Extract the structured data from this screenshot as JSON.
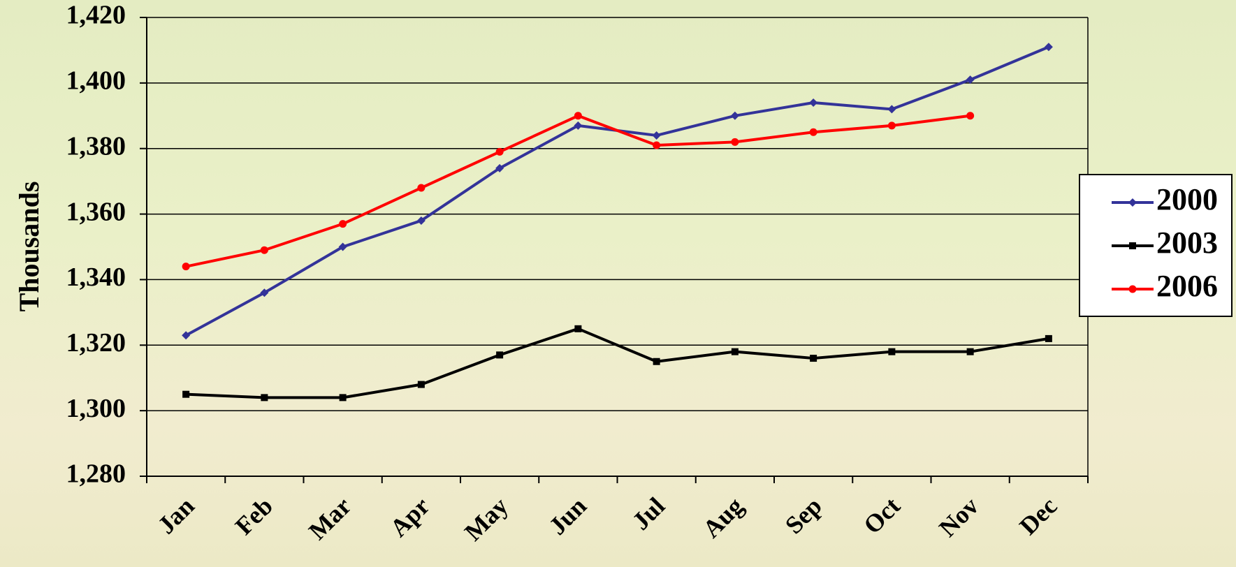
{
  "chart_data": {
    "type": "line",
    "ylabel": "Thousands",
    "categories": [
      "Jan",
      "Feb",
      "Mar",
      "Apr",
      "May",
      "Jun",
      "Jul",
      "Aug",
      "Sep",
      "Oct",
      "Nov",
      "Dec"
    ],
    "series": [
      {
        "name": "2000",
        "color": "#333399",
        "marker": "diamond",
        "values": [
          1323,
          1336,
          1350,
          1358,
          1374,
          1387,
          1384,
          1390,
          1394,
          1392,
          1401,
          1411
        ]
      },
      {
        "name": "2003",
        "color": "#000000",
        "marker": "square",
        "values": [
          1305,
          1304,
          1304,
          1308,
          1317,
          1325,
          1315,
          1318,
          1316,
          1318,
          1318,
          1322
        ]
      },
      {
        "name": "2006",
        "color": "#ff0000",
        "marker": "circle",
        "values": [
          1344,
          1349,
          1357,
          1368,
          1379,
          1390,
          1381,
          1382,
          1385,
          1387,
          1390,
          null
        ]
      }
    ],
    "ylim": [
      1280,
      1420
    ],
    "yticks": [
      {
        "value": 1280,
        "label": "1,280"
      },
      {
        "value": 1300,
        "label": "1,300"
      },
      {
        "value": 1320,
        "label": "1,320"
      },
      {
        "value": 1340,
        "label": "1,340"
      },
      {
        "value": 1360,
        "label": "1,360"
      },
      {
        "value": 1380,
        "label": "1,380"
      },
      {
        "value": 1400,
        "label": "1,400"
      },
      {
        "value": 1420,
        "label": "1,420"
      }
    ],
    "grid": true,
    "legend": "right"
  }
}
